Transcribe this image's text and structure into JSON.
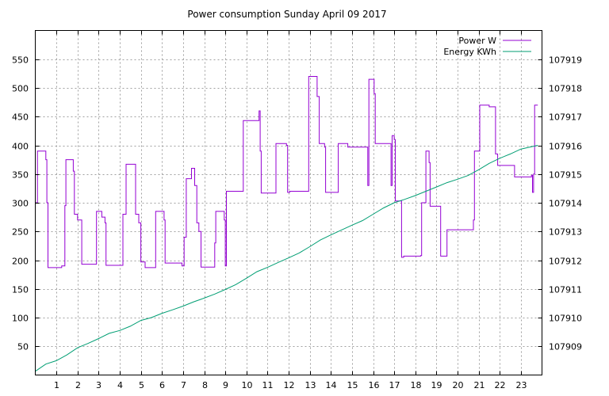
{
  "chart_data": {
    "type": "line",
    "title": "Power consumption Sunday April 09 2017",
    "grid": true,
    "legend_position": "top-right",
    "x": {
      "range": [
        0,
        24
      ],
      "tick_labels": [
        "1",
        "2",
        "3",
        "4",
        "5",
        "6",
        "7",
        "8",
        "9",
        "10",
        "11",
        "12",
        "13",
        "14",
        "15",
        "16",
        "17",
        "18",
        "19",
        "20",
        "21",
        "22",
        "23"
      ],
      "tick_values": [
        1,
        2,
        3,
        4,
        5,
        6,
        7,
        8,
        9,
        10,
        11,
        12,
        13,
        14,
        15,
        16,
        17,
        18,
        19,
        20,
        21,
        22,
        23
      ]
    },
    "y_left": {
      "range": [
        0,
        600
      ],
      "tick_labels": [
        "50",
        "100",
        "150",
        "200",
        "250",
        "300",
        "350",
        "400",
        "450",
        "500",
        "550"
      ],
      "tick_values": [
        50,
        100,
        150,
        200,
        250,
        300,
        350,
        400,
        450,
        500,
        550
      ]
    },
    "y_right": {
      "range": [
        107908.0,
        107920.0
      ],
      "tick_labels": [
        "107909",
        "107910",
        "107911",
        "107912",
        "107913",
        "107914",
        "107915",
        "107916",
        "107917",
        "107918",
        "107919"
      ],
      "tick_values": [
        107909,
        107910,
        107911,
        107912,
        107913,
        107914,
        107915,
        107916,
        107917,
        107918,
        107919
      ]
    },
    "series": [
      {
        "name": "Power W",
        "axis": "left",
        "color": "#9400d3",
        "step": true,
        "points": [
          [
            0,
            300
          ],
          [
            0.1,
            390
          ],
          [
            0.5,
            375
          ],
          [
            0.55,
            300
          ],
          [
            0.6,
            187
          ],
          [
            1.25,
            190
          ],
          [
            1.4,
            295
          ],
          [
            1.45,
            375
          ],
          [
            1.8,
            355
          ],
          [
            1.85,
            280
          ],
          [
            2.0,
            270
          ],
          [
            2.2,
            193
          ],
          [
            2.9,
            285
          ],
          [
            3.15,
            275
          ],
          [
            3.3,
            265
          ],
          [
            3.35,
            191
          ],
          [
            4.15,
            280
          ],
          [
            4.3,
            367
          ],
          [
            4.75,
            280
          ],
          [
            4.9,
            265
          ],
          [
            5.0,
            197
          ],
          [
            5.2,
            187
          ],
          [
            5.7,
            285
          ],
          [
            6.1,
            270
          ],
          [
            6.15,
            195
          ],
          [
            6.95,
            190
          ],
          [
            7.05,
            240
          ],
          [
            7.15,
            342
          ],
          [
            7.4,
            360
          ],
          [
            7.55,
            330
          ],
          [
            7.65,
            265
          ],
          [
            7.75,
            250
          ],
          [
            7.85,
            188
          ],
          [
            8.5,
            230
          ],
          [
            8.55,
            285
          ],
          [
            8.95,
            270
          ],
          [
            9.0,
            190
          ],
          [
            9.05,
            320
          ],
          [
            9.85,
            443
          ],
          [
            10.6,
            460
          ],
          [
            10.65,
            390
          ],
          [
            10.7,
            317
          ],
          [
            11.4,
            403
          ],
          [
            11.9,
            400
          ],
          [
            11.95,
            318
          ],
          [
            12.05,
            320
          ],
          [
            12.95,
            520
          ],
          [
            13.35,
            485
          ],
          [
            13.45,
            403
          ],
          [
            13.7,
            397
          ],
          [
            13.75,
            318
          ],
          [
            14.35,
            403
          ],
          [
            14.8,
            397
          ],
          [
            15.75,
            330
          ],
          [
            15.8,
            515
          ],
          [
            16.05,
            490
          ],
          [
            16.1,
            403
          ],
          [
            16.85,
            330
          ],
          [
            16.9,
            417
          ],
          [
            17.0,
            410
          ],
          [
            17.05,
            303
          ],
          [
            17.35,
            205
          ],
          [
            17.45,
            207
          ],
          [
            18.25,
            208
          ],
          [
            18.3,
            300
          ],
          [
            18.5,
            390
          ],
          [
            18.65,
            370
          ],
          [
            18.7,
            294
          ],
          [
            19.2,
            207
          ],
          [
            19.5,
            253
          ],
          [
            20.7,
            253
          ],
          [
            20.75,
            270
          ],
          [
            20.8,
            390
          ],
          [
            21.05,
            470
          ],
          [
            21.5,
            467
          ],
          [
            21.8,
            385
          ],
          [
            21.9,
            365
          ],
          [
            22.6,
            365
          ],
          [
            22.7,
            345
          ],
          [
            23.5,
            348
          ],
          [
            23.55,
            318
          ],
          [
            23.6,
            350
          ],
          [
            23.65,
            470
          ],
          [
            23.8,
            470
          ]
        ]
      },
      {
        "name": "Energy KWh",
        "axis": "right",
        "color": "#009e73",
        "step": false,
        "points": [
          [
            0,
            107908.13
          ],
          [
            0.5,
            107908.38
          ],
          [
            1,
            107908.5
          ],
          [
            1.5,
            107908.7
          ],
          [
            2,
            107908.95
          ],
          [
            2.5,
            107909.1
          ],
          [
            3,
            107909.27
          ],
          [
            3.5,
            107909.45
          ],
          [
            4,
            107909.55
          ],
          [
            4.5,
            107909.7
          ],
          [
            5,
            107909.9
          ],
          [
            5.5,
            107910.0
          ],
          [
            6,
            107910.15
          ],
          [
            6.5,
            107910.27
          ],
          [
            7,
            107910.4
          ],
          [
            7.5,
            107910.55
          ],
          [
            8,
            107910.68
          ],
          [
            8.5,
            107910.82
          ],
          [
            9,
            107910.98
          ],
          [
            9.5,
            107911.15
          ],
          [
            10,
            107911.37
          ],
          [
            10.5,
            107911.6
          ],
          [
            11,
            107911.75
          ],
          [
            11.5,
            107911.92
          ],
          [
            12,
            107912.08
          ],
          [
            12.5,
            107912.25
          ],
          [
            13,
            107912.47
          ],
          [
            13.5,
            107912.7
          ],
          [
            14,
            107912.88
          ],
          [
            14.5,
            107913.05
          ],
          [
            15,
            107913.22
          ],
          [
            15.5,
            107913.38
          ],
          [
            16,
            107913.6
          ],
          [
            16.5,
            107913.82
          ],
          [
            17,
            107914.0
          ],
          [
            17.5,
            107914.12
          ],
          [
            18,
            107914.25
          ],
          [
            18.5,
            107914.4
          ],
          [
            19,
            107914.55
          ],
          [
            19.5,
            107914.7
          ],
          [
            20,
            107914.82
          ],
          [
            20.5,
            107914.95
          ],
          [
            21,
            107915.15
          ],
          [
            21.5,
            107915.37
          ],
          [
            22,
            107915.55
          ],
          [
            22.5,
            107915.7
          ],
          [
            23,
            107915.87
          ],
          [
            23.8,
            107916.0
          ]
        ]
      }
    ]
  }
}
